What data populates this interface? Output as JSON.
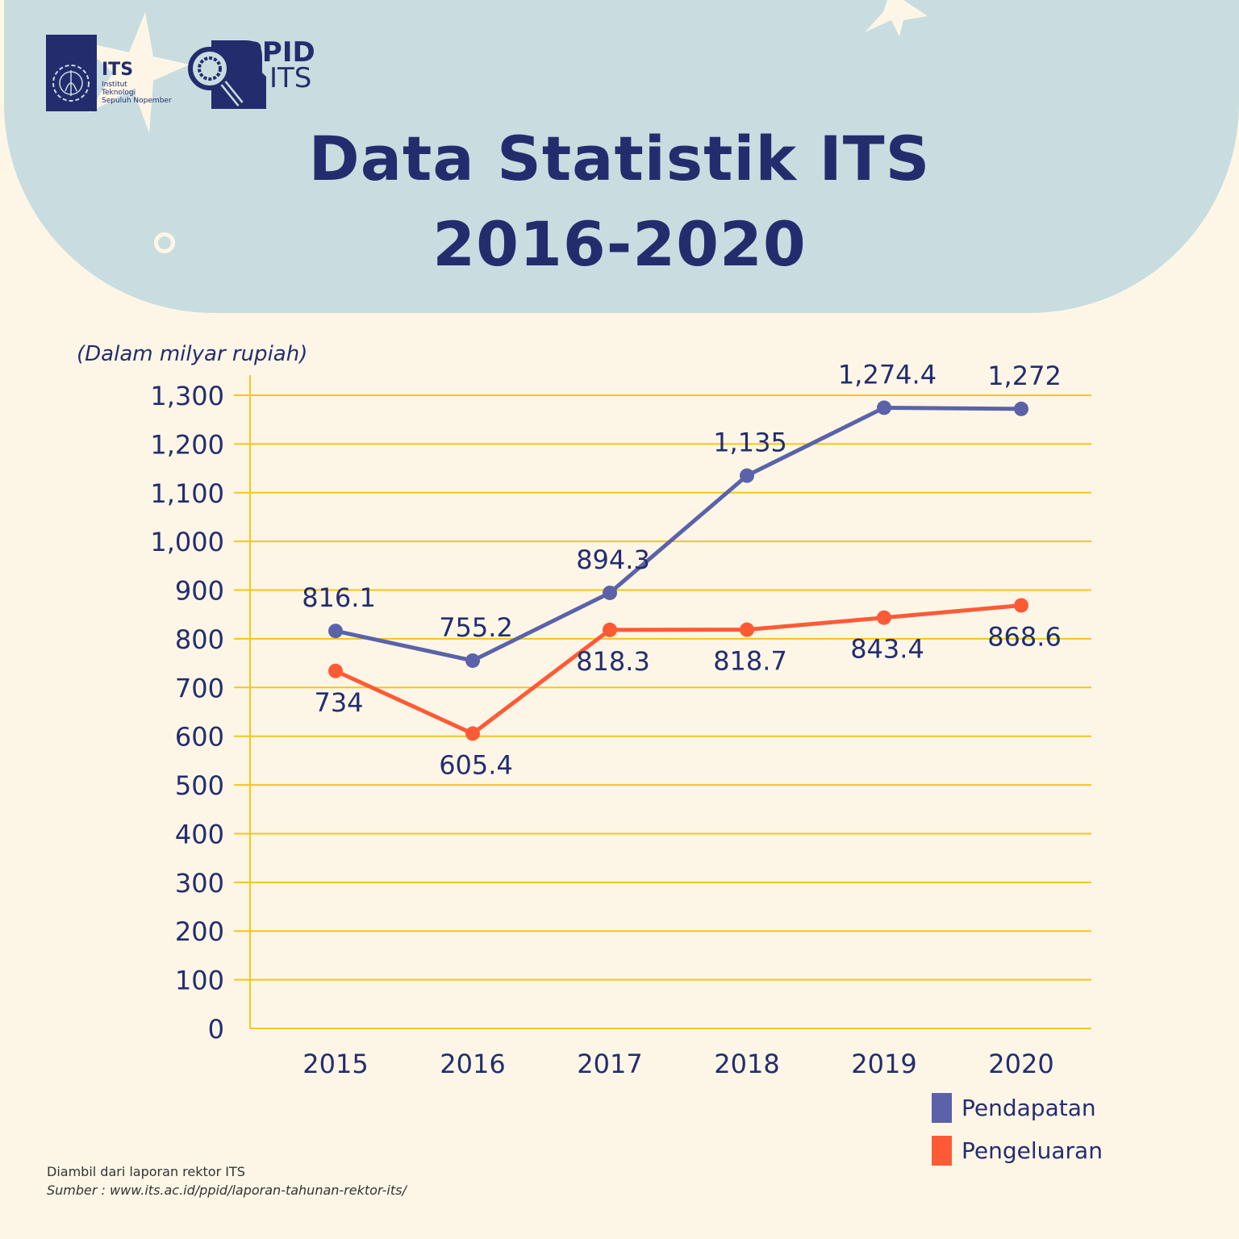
{
  "header": {
    "title_line1": "Data Statistik ITS",
    "title_line2": "2016-2020",
    "logo_its": {
      "wordmark": "ITS",
      "line1": "Institut",
      "line2": "Teknologi",
      "line3": "Sepuluh Nopember"
    },
    "logo_ppid": {
      "line1": "PPID",
      "line2": "ITS"
    }
  },
  "colors": {
    "navy": "#232d6e",
    "pendapatan": "#5b62aa",
    "pengeluaran": "#ff5a36",
    "grid": "#f5c518",
    "background": "#fdf6e7",
    "header_bg": "#c9dde0"
  },
  "chart_data": {
    "type": "line",
    "title": "Data Statistik ITS 2016-2020",
    "unit_label": "(Dalam milyar rupiah)",
    "categories": [
      "2015",
      "2016",
      "2017",
      "2018",
      "2019",
      "2020"
    ],
    "ylim": [
      0,
      1300
    ],
    "yticks": [
      0,
      100,
      200,
      300,
      400,
      500,
      600,
      700,
      800,
      900,
      1000,
      1100,
      1200,
      1300
    ],
    "ytick_labels": [
      "0",
      "100",
      "200",
      "300",
      "400",
      "500",
      "600",
      "700",
      "800",
      "900",
      "1,000",
      "1,100",
      "1,200",
      "1,300"
    ],
    "grid": true,
    "legend_placement": "bottom-right",
    "series": [
      {
        "name": "Pendapatan",
        "values": [
          816.1,
          755.2,
          894.3,
          1135,
          1274.4,
          1272
        ],
        "labels": [
          "816.1",
          "755.2",
          "894.3",
          "1,135",
          "1,274.4",
          "1,272"
        ]
      },
      {
        "name": "Pengeluaran",
        "values": [
          734,
          605.4,
          818.3,
          818.7,
          843.4,
          868.6
        ],
        "labels": [
          "734",
          "605.4",
          "818.3",
          "818.7",
          "843.4",
          "868.6"
        ]
      }
    ]
  },
  "footer": {
    "note": "Diambil dari laporan rektor ITS",
    "source": "Sumber : www.its.ac.id/ppid/laporan-tahunan-rektor-its/"
  }
}
